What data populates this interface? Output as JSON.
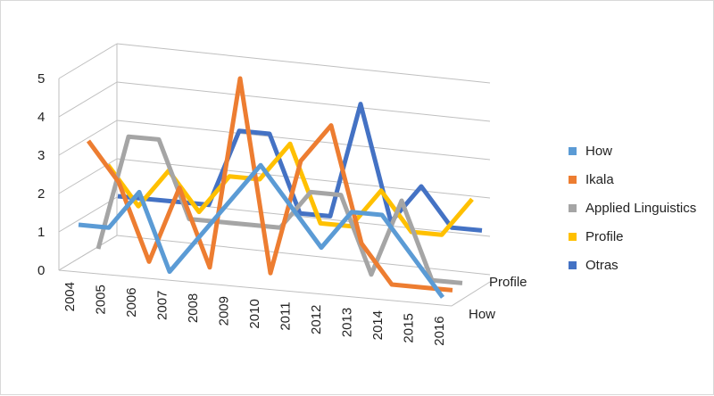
{
  "chart_data": {
    "type": "line",
    "variant": "3d-line",
    "title": "",
    "xlabel": "",
    "ylabel": "",
    "categories": [
      "2004",
      "2005",
      "2006",
      "2007",
      "2008",
      "2009",
      "2010",
      "2011",
      "2012",
      "2013",
      "2014",
      "2015",
      "2016"
    ],
    "depth_labels": [
      "How",
      "Profile"
    ],
    "ylim": [
      0,
      5
    ],
    "yticks": [
      "0",
      "1",
      "2",
      "3",
      "4",
      "5"
    ],
    "grid": true,
    "legend_position": "right",
    "series": [
      {
        "name": "How",
        "color": "#5B9BD5",
        "values": [
          1,
          1,
          2,
          0,
          1,
          2,
          3,
          2,
          1,
          2,
          2,
          1,
          0
        ]
      },
      {
        "name": "Ikala",
        "color": "#ED7D31",
        "values": [
          3,
          2,
          0,
          2,
          0,
          5,
          0,
          3,
          4,
          1,
          0,
          0,
          0
        ]
      },
      {
        "name": "Applied Linguistics",
        "color": "#A5A5A5",
        "values": [
          0,
          3,
          3,
          1,
          1,
          1,
          1,
          2,
          2,
          0,
          2,
          0,
          0
        ]
      },
      {
        "name": "Profile",
        "color": "#FFC000",
        "values": [
          2,
          1,
          2,
          1,
          2,
          2,
          3,
          1,
          1,
          2,
          1,
          1,
          2
        ]
      },
      {
        "name": "Otras",
        "color": "#4472C4",
        "values": [
          1,
          1,
          1,
          1,
          3,
          3,
          1,
          1,
          4,
          1,
          2,
          1,
          1
        ]
      }
    ]
  }
}
